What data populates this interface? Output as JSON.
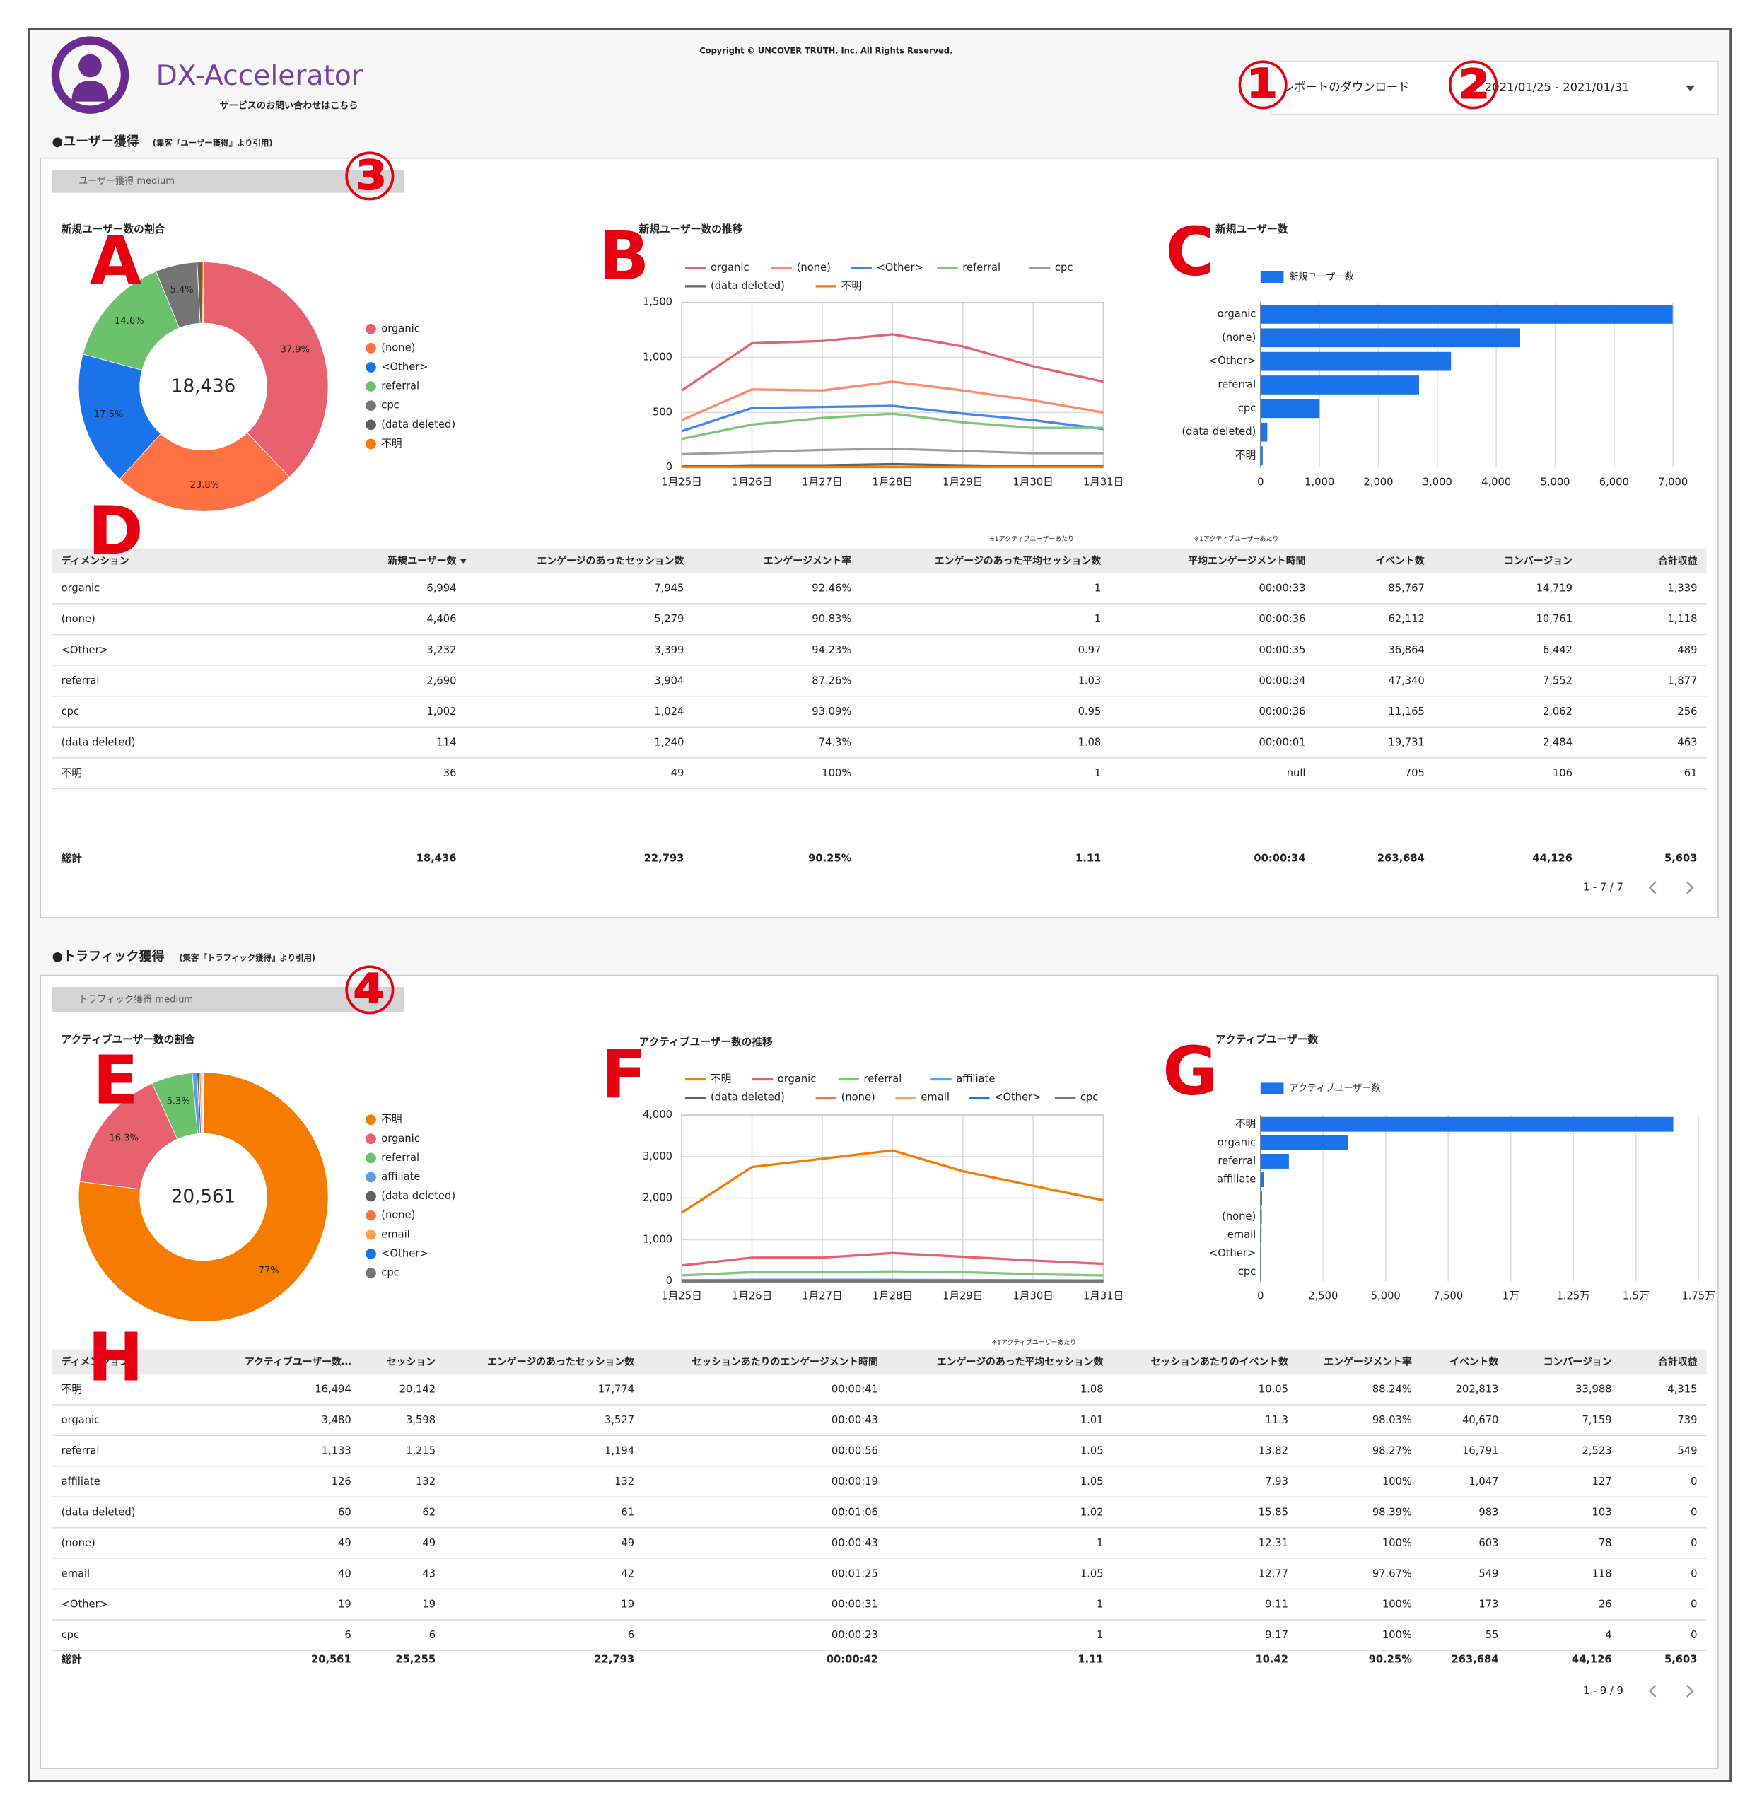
{
  "header": {
    "logo": "DX-Accelerator",
    "contact": "サービスのお問い合わせはこちら",
    "copyright": "Copyright © UNCOVER TRUTH, Inc. All Rights Reserved.",
    "download": "レポートのダウンロード",
    "date_range": "2021/01/25 - 2021/01/31"
  },
  "annotations": {
    "markers": [
      "①",
      "②",
      "③",
      "④"
    ],
    "letters": [
      "A",
      "B",
      "C",
      "D",
      "E",
      "F",
      "G",
      "H"
    ]
  },
  "sections": [
    {
      "title": "●ユーザー獲得",
      "source": "(集客『ユーザー獲得』より引用)",
      "filter": "ユーザー獲得 medium",
      "table": {
        "header_notes": [
          null,
          null,
          null,
          null,
          "※1アクティブユーザーあたり",
          "※1アクティブユーザーあたり",
          null,
          null,
          null
        ],
        "headers": [
          "ディメンション",
          "新規ユーザー数",
          "エンゲージのあったセッション数",
          "エンゲージメント率",
          "エンゲージのあった平均セッション数",
          "平均エンゲージメント時間",
          "イベント数",
          "コンバージョン",
          "合計収益"
        ],
        "rows": [
          [
            "organic",
            "6,994",
            "7,945",
            "92.46%",
            "1",
            "00:00:33",
            "85,767",
            "14,719",
            "1,339"
          ],
          [
            "(none)",
            "4,406",
            "5,279",
            "90.83%",
            "1",
            "00:00:36",
            "62,112",
            "10,761",
            "1,118"
          ],
          [
            "<Other>",
            "3,232",
            "3,399",
            "94.23%",
            "0.97",
            "00:00:35",
            "36,864",
            "6,442",
            "489"
          ],
          [
            "referral",
            "2,690",
            "3,904",
            "87.26%",
            "1.03",
            "00:00:34",
            "47,340",
            "7,552",
            "1,877"
          ],
          [
            "cpc",
            "1,002",
            "1,024",
            "93.09%",
            "0.95",
            "00:00:36",
            "11,165",
            "2,062",
            "256"
          ],
          [
            "(data deleted)",
            "114",
            "1,240",
            "74.3%",
            "1.08",
            "00:00:01",
            "19,731",
            "2,484",
            "463"
          ],
          [
            "不明",
            "36",
            "49",
            "100%",
            "1",
            "null",
            "705",
            "106",
            "61"
          ]
        ],
        "total": [
          "総計",
          "18,436",
          "22,793",
          "90.25%",
          "1.11",
          "00:00:34",
          "263,684",
          "44,126",
          "5,603"
        ],
        "pagination": "1 - 7 / 7"
      }
    },
    {
      "title": "●トラフィック獲得",
      "source": "(集客『トラフィック獲得』より引用)",
      "filter": "トラフィック獲得 medium",
      "table": {
        "header_notes": [
          null,
          null,
          null,
          null,
          null,
          "※1アクティブユーザーあたり",
          null,
          null,
          null,
          null,
          null
        ],
        "headers": [
          "ディメンション",
          "アクティブユーザー数…",
          "セッション",
          "エンゲージのあったセッション数",
          "セッションあたりのエンゲージメント時間",
          "エンゲージのあった平均セッション数",
          "セッションあたりのイベント数",
          "エンゲージメント率",
          "イベント数",
          "コンバージョン",
          "合計収益"
        ],
        "rows": [
          [
            "不明",
            "16,494",
            "20,142",
            "17,774",
            "00:00:41",
            "1.08",
            "10.05",
            "88.24%",
            "202,813",
            "33,988",
            "4,315"
          ],
          [
            "organic",
            "3,480",
            "3,598",
            "3,527",
            "00:00:43",
            "1.01",
            "11.3",
            "98.03%",
            "40,670",
            "7,159",
            "739"
          ],
          [
            "referral",
            "1,133",
            "1,215",
            "1,194",
            "00:00:56",
            "1.05",
            "13.82",
            "98.27%",
            "16,791",
            "2,523",
            "549"
          ],
          [
            "affiliate",
            "126",
            "132",
            "132",
            "00:00:19",
            "1.05",
            "7.93",
            "100%",
            "1,047",
            "127",
            "0"
          ],
          [
            "(data deleted)",
            "60",
            "62",
            "61",
            "00:01:06",
            "1.02",
            "15.85",
            "98.39%",
            "983",
            "103",
            "0"
          ],
          [
            "(none)",
            "49",
            "49",
            "49",
            "00:00:43",
            "1",
            "12.31",
            "100%",
            "603",
            "78",
            "0"
          ],
          [
            "email",
            "40",
            "43",
            "42",
            "00:01:25",
            "1.05",
            "12.77",
            "97.67%",
            "549",
            "118",
            "0"
          ],
          [
            "<Other>",
            "19",
            "19",
            "19",
            "00:00:31",
            "1",
            "9.11",
            "100%",
            "173",
            "26",
            "0"
          ],
          [
            "cpc",
            "6",
            "6",
            "6",
            "00:00:23",
            "1",
            "9.17",
            "100%",
            "55",
            "4",
            "0"
          ]
        ],
        "total": [
          "総計",
          "20,561",
          "25,255",
          "22,793",
          "00:00:42",
          "1.11",
          "10.42",
          "90.25%",
          "263,684",
          "44,126",
          "5,603"
        ],
        "pagination": "1 - 9 / 9"
      }
    }
  ],
  "chart_data": [
    {
      "type": "pie",
      "donut": true,
      "title": "新規ユーザー数の割合",
      "center_label": "18,436",
      "categories": [
        "organic",
        "(none)",
        "<Other>",
        "referral",
        "cpc",
        "(data deleted)",
        "不明"
      ],
      "values": [
        37.9,
        23.8,
        17.5,
        14.6,
        5.4,
        0.6,
        0.2
      ],
      "value_labels": [
        "37.9%",
        "23.8%",
        "17.5%",
        "14.6%",
        "5.4%",
        null,
        null
      ],
      "colors": [
        "#e8616e",
        "#ff7043",
        "#1a73e8",
        "#6cc26a",
        "#757575",
        "#5f5f5f",
        "#f57c00"
      ]
    },
    {
      "type": "line",
      "title": "新規ユーザー数の推移",
      "x": [
        "1月25日",
        "1月26日",
        "1月27日",
        "1月28日",
        "1月29日",
        "1月30日",
        "1月31日"
      ],
      "series": [
        {
          "name": "organic",
          "color": "#e8616e",
          "values": [
            700,
            1130,
            1150,
            1210,
            1100,
            920,
            780
          ]
        },
        {
          "name": "(none)",
          "color": "#ff8a65",
          "values": [
            430,
            710,
            700,
            780,
            700,
            610,
            500
          ]
        },
        {
          "name": "<Other>",
          "color": "#4285f4",
          "values": [
            330,
            540,
            550,
            560,
            490,
            430,
            350
          ]
        },
        {
          "name": "referral",
          "color": "#7cc87a",
          "values": [
            260,
            390,
            450,
            490,
            410,
            360,
            360
          ]
        },
        {
          "name": "cpc",
          "color": "#9e9e9e",
          "values": [
            120,
            140,
            160,
            170,
            150,
            130,
            130
          ]
        },
        {
          "name": "(data deleted)",
          "color": "#616161",
          "values": [
            10,
            20,
            20,
            30,
            20,
            10,
            10
          ]
        },
        {
          "name": "不明",
          "color": "#f57c00",
          "values": [
            5,
            5,
            5,
            5,
            5,
            5,
            5
          ]
        }
      ],
      "ylim": [
        0,
        1500
      ],
      "yticks": [
        0,
        500,
        {
          "value": 1000,
          "label": "1,000"
        },
        {
          "value": 1500,
          "label": "1,500"
        }
      ],
      "grid": true
    },
    {
      "type": "bar",
      "orientation": "horizontal",
      "title": "新規ユーザー数",
      "categories": [
        "organic",
        "(none)",
        "<Other>",
        "referral",
        "cpc",
        "(data deleted)",
        "不明"
      ],
      "series": [
        {
          "name": "新規ユーザー数",
          "color": "#1a73e8",
          "values": [
            6994,
            4406,
            3232,
            2690,
            1002,
            114,
            36
          ]
        }
      ],
      "xlim": [
        0,
        7000
      ],
      "xticks": [
        0,
        {
          "value": 1000,
          "label": "1,000"
        },
        {
          "value": 2000,
          "label": "2,000"
        },
        {
          "value": 3000,
          "label": "3,000"
        },
        {
          "value": 4000,
          "label": "4,000"
        },
        {
          "value": 5000,
          "label": "5,000"
        },
        {
          "value": 6000,
          "label": "6,000"
        },
        {
          "value": 7000,
          "label": "7,000"
        }
      ],
      "grid": true
    },
    {
      "type": "pie",
      "donut": true,
      "title": "アクティブユーザー数の割合",
      "center_label": "20,561",
      "categories": [
        "不明",
        "organic",
        "referral",
        "affiliate",
        "(data deleted)",
        "(none)",
        "email",
        "<Other>",
        "cpc"
      ],
      "values": [
        77,
        16.3,
        5.3,
        0.6,
        0.3,
        0.2,
        0.2,
        0.1,
        0.03
      ],
      "value_labels": [
        "77%",
        "16.3%",
        "5.3%",
        null,
        null,
        null,
        null,
        null,
        null
      ],
      "colors": [
        "#f57c00",
        "#e8616e",
        "#6cc26a",
        "#5c9ee6",
        "#616161",
        "#ff7043",
        "#ffa04d",
        "#1a73e8",
        "#757575"
      ]
    },
    {
      "type": "line",
      "title": "アクティブユーザー数の推移",
      "x": [
        "1月25日",
        "1月26日",
        "1月27日",
        "1月28日",
        "1月29日",
        "1月30日",
        "1月31日"
      ],
      "series": [
        {
          "name": "不明",
          "color": "#f57c00",
          "values": [
            1650,
            2750,
            2950,
            3150,
            2650,
            2300,
            1950
          ]
        },
        {
          "name": "organic",
          "color": "#e8616e",
          "values": [
            380,
            570,
            570,
            680,
            590,
            500,
            420
          ]
        },
        {
          "name": "referral",
          "color": "#7cc87a",
          "values": [
            140,
            220,
            220,
            240,
            220,
            170,
            140
          ]
        },
        {
          "name": "affiliate",
          "color": "#5c9ee6",
          "values": [
            25,
            35,
            35,
            35,
            30,
            25,
            20
          ]
        },
        {
          "name": "(data deleted)",
          "color": "#616161",
          "values": [
            10,
            12,
            12,
            12,
            10,
            8,
            8
          ]
        },
        {
          "name": "(none)",
          "color": "#ff7043",
          "values": [
            8,
            10,
            10,
            10,
            8,
            6,
            6
          ]
        },
        {
          "name": "email",
          "color": "#ffa04d",
          "values": [
            6,
            8,
            8,
            8,
            6,
            5,
            5
          ]
        },
        {
          "name": "<Other>",
          "color": "#1a73e8",
          "values": [
            3,
            4,
            4,
            4,
            3,
            3,
            3
          ]
        },
        {
          "name": "cpc",
          "color": "#757575",
          "values": [
            1,
            1,
            1,
            1,
            1,
            1,
            1
          ]
        }
      ],
      "ylim": [
        0,
        4000
      ],
      "yticks": [
        0,
        {
          "value": 1000,
          "label": "1,000"
        },
        {
          "value": 2000,
          "label": "2,000"
        },
        {
          "value": 3000,
          "label": "3,000"
        },
        {
          "value": 4000,
          "label": "4,000"
        }
      ],
      "grid": true
    },
    {
      "type": "bar",
      "orientation": "horizontal",
      "title": "アクティブユーザー数",
      "categories": [
        "不明",
        "organic",
        "referral",
        "affiliate",
        null,
        "(none)",
        "email",
        "<Other>",
        "cpc"
      ],
      "series": [
        {
          "name": "アクティブユーザー数",
          "color": "#1a73e8",
          "values": [
            16494,
            3480,
            1133,
            126,
            60,
            49,
            40,
            19,
            6
          ]
        }
      ],
      "xlim": [
        0,
        17500
      ],
      "xticks": [
        0,
        {
          "value": 2500,
          "label": "2,500"
        },
        {
          "value": 5000,
          "label": "5,000"
        },
        {
          "value": 7500,
          "label": "7,500"
        },
        {
          "value": 10000,
          "label": "1万"
        },
        {
          "value": 12500,
          "label": "1.25万"
        },
        {
          "value": 15000,
          "label": "1.5万"
        },
        {
          "value": 17500,
          "label": "1.75万"
        }
      ],
      "grid": true
    }
  ]
}
